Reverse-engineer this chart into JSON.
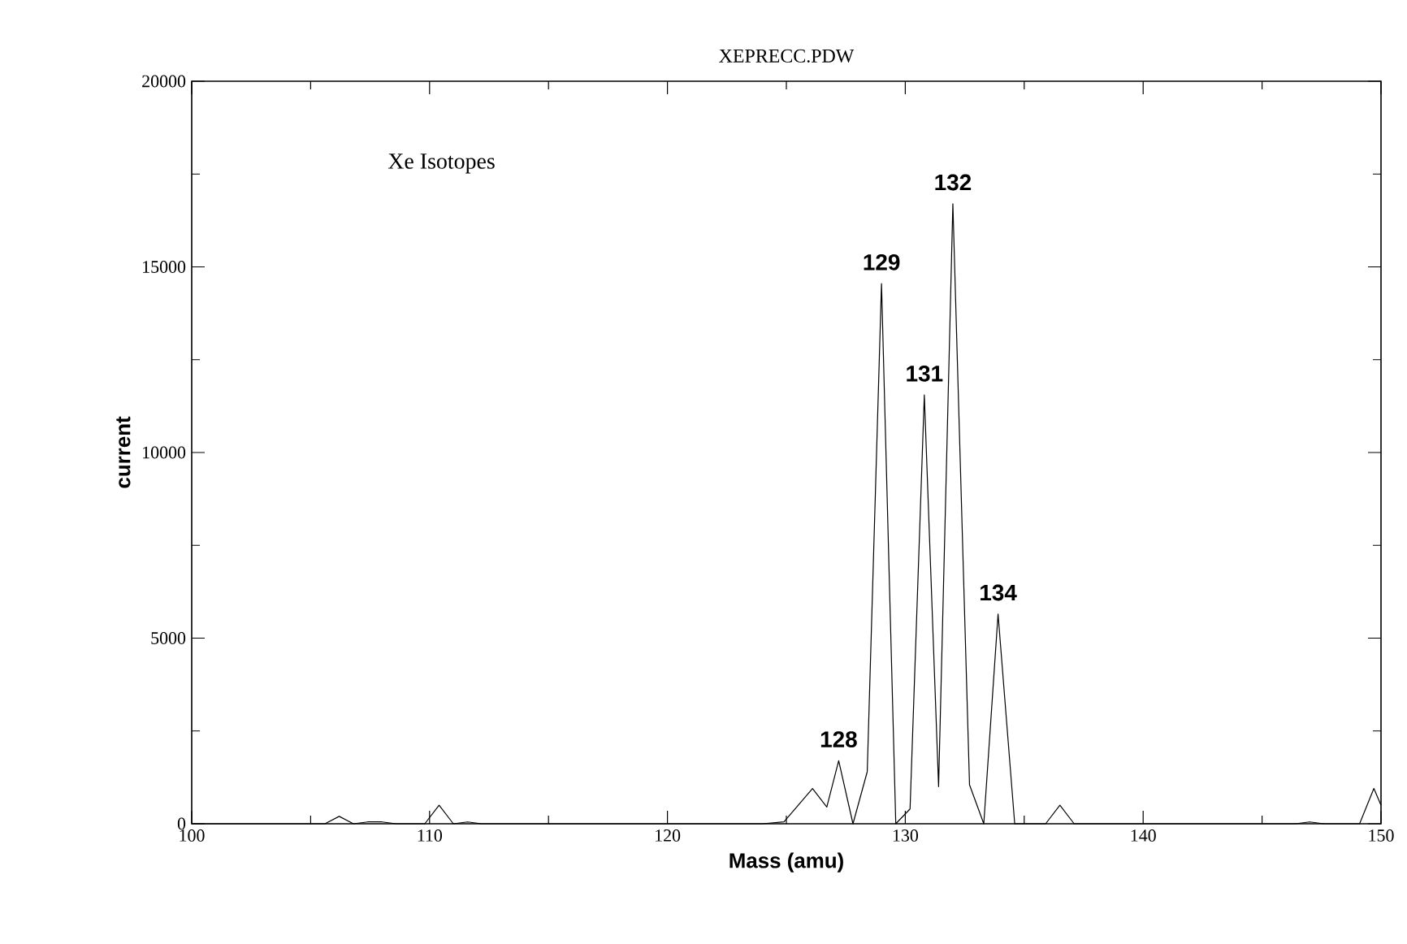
{
  "chart_data": {
    "type": "line",
    "title": "XEPRECC.PDW",
    "xlabel": "Mass (amu)",
    "ylabel": "current",
    "xlim": [
      100,
      150
    ],
    "xticks": [
      100,
      110,
      120,
      130,
      140,
      150
    ],
    "ylim": [
      0,
      20000
    ],
    "yticks": [
      0,
      5000,
      10000,
      15000,
      20000
    ],
    "grid": false,
    "marker": "none",
    "line_style": "solid",
    "series": [
      {
        "color": "#000000",
        "x": [
          100,
          105.6,
          106.2,
          106.8,
          107.4,
          108.0,
          108.6,
          109.8,
          110.4,
          111.0,
          111.6,
          112.2,
          124.0,
          124.9,
          126.1,
          126.7,
          127.2,
          127.8,
          128.4,
          129.0,
          129.6,
          130.2,
          130.8,
          131.4,
          132.0,
          132.7,
          133.3,
          133.9,
          134.6,
          135.9,
          136.5,
          137.1,
          146.4,
          147.0,
          147.6,
          149.1,
          149.7,
          150
        ],
        "values": [
          0,
          0,
          200,
          0,
          50,
          50,
          0,
          0,
          500,
          0,
          50,
          0,
          0,
          50,
          950,
          450,
          1700,
          0,
          1400,
          14550,
          0,
          400,
          11550,
          1000,
          16700,
          1050,
          0,
          5650,
          0,
          0,
          500,
          0,
          0,
          50,
          0,
          0,
          950,
          500
        ]
      }
    ],
    "annotations": [
      "Xe Isotopes",
      {
        "text": "128",
        "x": 127.2,
        "y": 1700
      },
      {
        "text": "129",
        "x": 129.0,
        "y": 14550
      },
      {
        "text": "131",
        "x": 130.8,
        "y": 11550
      },
      {
        "text": "132",
        "x": 132.0,
        "y": 16700
      },
      {
        "text": "134",
        "x": 133.9,
        "y": 5650
      }
    ]
  }
}
